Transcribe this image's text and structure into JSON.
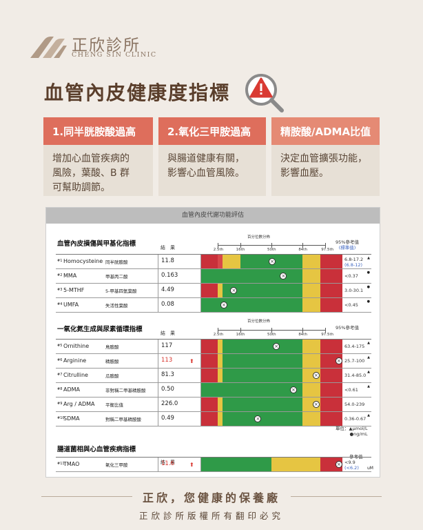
{
  "brand": {
    "name": "正欣診所",
    "english": "CHENG SIN CLINIC"
  },
  "headline": "血管內皮健康度指標",
  "cards": [
    {
      "title": "1.同半胱胺酸過高",
      "lines": [
        "增加心血管疾病的",
        "風險，葉酸、B 群",
        "可幫助調節。"
      ]
    },
    {
      "title": "2.氧化三甲胺過高",
      "lines": [
        "與腸道健康有關，",
        "影響心血管風險。"
      ]
    },
    {
      "title": "精胺酸/ADMA比值",
      "lines": [
        "決定血管擴張功能，",
        "影響血壓。"
      ]
    }
  ],
  "report": {
    "title": "血管內皮代謝功能評估",
    "result_label": "結　果",
    "percentile_label": "百分位數分佈",
    "ref_label": "95%參考值",
    "ref_label_short": "參考值",
    "ref_sub": "(標準值)",
    "percentiles": [
      "2.5th",
      "16th",
      "50th",
      "84th",
      "97.5th"
    ],
    "unit_note": [
      "單位：▲μmol/L",
      "●ng/mL"
    ],
    "sections": [
      {
        "title": "血管內皮損傷與甲基化指標",
        "rows": [
          {
            "num": "#1",
            "en": "Homocysteine",
            "zh": "同半胱胺酸",
            "value": "11.8",
            "high": false,
            "marker": 0.5,
            "zones": [
              "r",
              "r2",
              "y",
              "g",
              "g",
              "y",
              "r"
            ],
            "ref": "6.8-17.2",
            "ref2": "(6.8-12)",
            "unit_icon": "▲"
          },
          {
            "num": "#2",
            "en": "MMA",
            "zh": "甲基丙二酸",
            "value": "0.163",
            "high": false,
            "marker": 0.58,
            "zones": [
              "g",
              "g",
              "g",
              "g",
              "g",
              "y",
              "r"
            ],
            "ref": "<0.37",
            "ref2": "",
            "unit_icon": "●"
          },
          {
            "num": "#3",
            "en": "5-MTHF",
            "zh": "5-甲基四氫葉酸",
            "value": "4.49",
            "high": false,
            "marker": 0.23,
            "zones": [
              "r",
              "y",
              "g",
              "g",
              "g",
              "y",
              "r"
            ],
            "ref": "3.0-30.1",
            "ref2": "",
            "unit_icon": "●"
          },
          {
            "num": "#4",
            "en": "UMFA",
            "zh": "失活性葉酸",
            "value": "0.08",
            "high": false,
            "marker": 0.16,
            "zones": [
              "g",
              "g",
              "g",
              "g",
              "g",
              "y",
              "r"
            ],
            "ref": "<0.45",
            "ref2": "",
            "unit_icon": "●"
          }
        ]
      },
      {
        "title": "一氧化氮生成與尿素循環指標",
        "rows": [
          {
            "num": "#5",
            "en": "Ornithine",
            "zh": "鳥胺酸",
            "value": "117",
            "high": false,
            "marker": 0.53,
            "zones": [
              "r",
              "y",
              "g",
              "g",
              "g",
              "y",
              "r"
            ],
            "ref": "63.4-175",
            "ref2": "",
            "unit_icon": "▲"
          },
          {
            "num": "#6",
            "en": "Arginine",
            "zh": "精胺酸",
            "value": "113",
            "high": true,
            "marker": 0.97,
            "zones": [
              "r",
              "y",
              "g",
              "g",
              "g",
              "y",
              "r"
            ],
            "ref": "25.7-100",
            "ref2": "",
            "unit_icon": "▲"
          },
          {
            "num": "#7",
            "en": "Citrulline",
            "zh": "瓜胺酸",
            "value": "81.3",
            "high": false,
            "marker": 0.81,
            "zones": [
              "r",
              "y",
              "g",
              "g",
              "g",
              "y",
              "r"
            ],
            "ref": "31.4-85.0",
            "ref2": "",
            "unit_icon": "▲"
          },
          {
            "num": "#8",
            "en": "ADMA",
            "zh": "非對稱二甲基精胺酸",
            "value": "0.50",
            "high": false,
            "marker": 0.65,
            "zones": [
              "g",
              "g",
              "g",
              "g",
              "g",
              "y",
              "r"
            ],
            "ref": "<0.61",
            "ref2": "",
            "unit_icon": "▲"
          },
          {
            "num": "#9",
            "en": "Arg / ADMA",
            "zh": "平衡比值",
            "value": "226.0",
            "high": false,
            "marker": 0.81,
            "zones": [
              "r",
              "y",
              "g",
              "g",
              "g",
              "y",
              "r"
            ],
            "ref": "54.0-239",
            "ref2": "",
            "unit_icon": ""
          },
          {
            "num": "#10",
            "en": "SDMA",
            "zh": "對稱二甲基精胺酸",
            "value": "0.49",
            "high": false,
            "marker": 0.4,
            "zones": [
              "r",
              "y",
              "g",
              "g",
              "g",
              "y",
              "r"
            ],
            "ref": "0.36-0.67",
            "ref2": "",
            "unit_icon": "▲"
          }
        ]
      },
      {
        "title": "腸道菌相與心血管疾病指標",
        "rows": [
          {
            "num": "#11",
            "en": "TMAO",
            "zh": "氧化三甲胺",
            "value": "11.6",
            "high": true,
            "marker": 0.97,
            "zones": [
              "g",
              "g",
              "g",
              "g",
              "y",
              "y",
              "r"
            ],
            "ref": "<9.9",
            "ref2": "(<6.2)",
            "unit_icon": "",
            "unit": "uM"
          }
        ]
      }
    ]
  },
  "footer": {
    "slogan": "正欣，您健康的保養廠",
    "copyright": "正欣診所版權所有翻印必究"
  },
  "colors": {
    "red": "#c9303a",
    "red_light": "#d8484a",
    "yellow": "#e6c542",
    "green": "#2f9a48",
    "card_red": "#de6e5c"
  }
}
